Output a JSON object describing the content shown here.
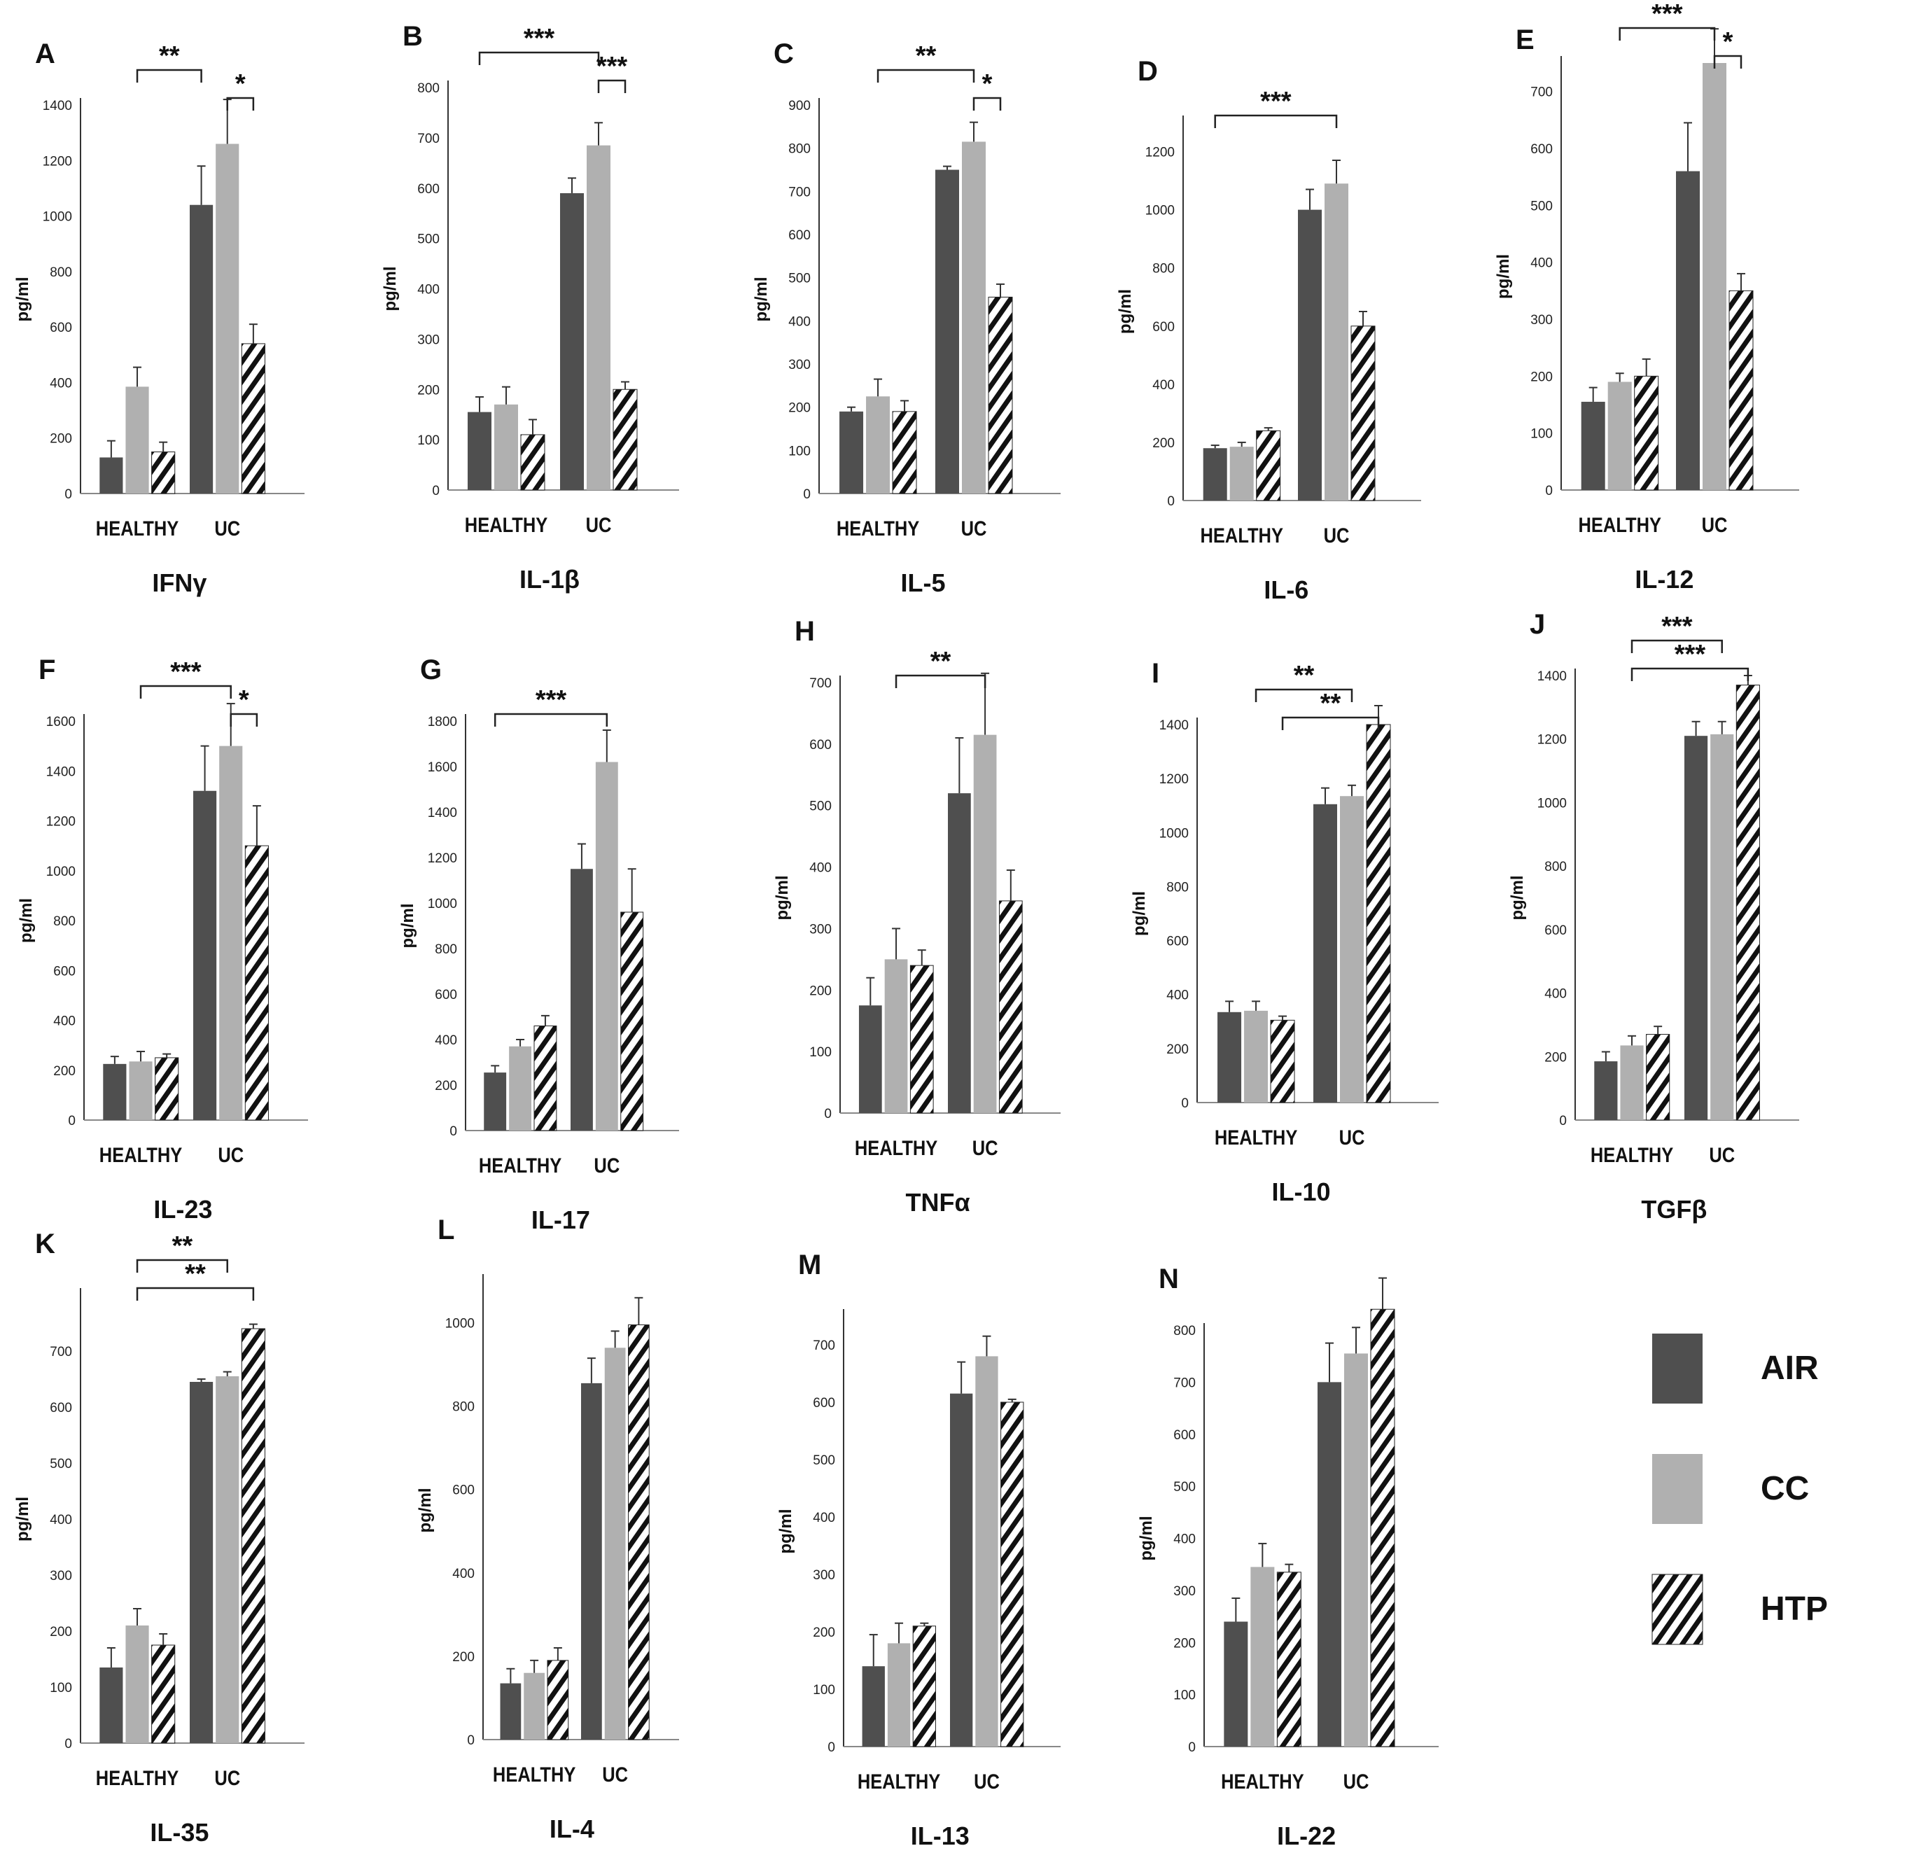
{
  "figure": {
    "ylabel": "pg/ml",
    "legend": [
      {
        "series": "AIR",
        "label": "AIR",
        "fill": "#4f4f4f"
      },
      {
        "series": "CC",
        "label": "CC",
        "fill": "#b0b0b0"
      },
      {
        "series": "HTP",
        "label": "HTP",
        "fill": "hatch"
      }
    ],
    "colors": {
      "air": "#4f4f4f",
      "cc": "#b0b0b0",
      "hatch": "#111111",
      "axis": "#333333"
    }
  },
  "chart_data": [
    {
      "panel": "A",
      "type": "bar",
      "title": "IFNγ",
      "ylabel": "pg/ml",
      "categories": [
        "HEALTHY",
        "UC"
      ],
      "ylim": [
        0,
        1400
      ],
      "yticks": [
        0,
        200,
        400,
        600,
        800,
        1000,
        1200,
        1400
      ],
      "series": [
        {
          "name": "AIR",
          "values": [
            130,
            1040
          ],
          "errors": [
            60,
            140
          ]
        },
        {
          "name": "CC",
          "values": [
            385,
            1260
          ],
          "errors": [
            70,
            160
          ]
        },
        {
          "name": "HTP",
          "values": [
            150,
            540
          ],
          "errors": [
            35,
            70
          ]
        }
      ],
      "annotations": [
        {
          "from": [
            0,
            1
          ],
          "to": [
            1,
            0
          ],
          "label": "**"
        },
        {
          "from": [
            1,
            1
          ],
          "to": [
            1,
            2
          ],
          "label": "*"
        }
      ]
    },
    {
      "panel": "B",
      "type": "bar",
      "title": "IL-1β",
      "ylabel": "pg/ml",
      "categories": [
        "HEALTHY",
        "UC"
      ],
      "ylim": [
        0,
        800
      ],
      "yticks": [
        0,
        100,
        200,
        300,
        400,
        500,
        600,
        700,
        800
      ],
      "series": [
        {
          "name": "AIR",
          "values": [
            155,
            590
          ],
          "errors": [
            30,
            30
          ]
        },
        {
          "name": "CC",
          "values": [
            170,
            685
          ],
          "errors": [
            35,
            45
          ]
        },
        {
          "name": "HTP",
          "values": [
            110,
            200
          ],
          "errors": [
            30,
            15
          ]
        }
      ],
      "annotations": [
        {
          "from": [
            0,
            0
          ],
          "to": [
            1,
            1
          ],
          "label": "***"
        },
        {
          "from": [
            1,
            1
          ],
          "to": [
            1,
            2
          ],
          "label": "***"
        }
      ]
    },
    {
      "panel": "C",
      "type": "bar",
      "title": "IL-5",
      "ylabel": "pg/ml",
      "categories": [
        "HEALTHY",
        "UC"
      ],
      "ylim": [
        0,
        900
      ],
      "yticks": [
        0,
        100,
        200,
        300,
        400,
        500,
        600,
        700,
        800,
        900
      ],
      "series": [
        {
          "name": "AIR",
          "values": [
            190,
            750
          ],
          "errors": [
            10,
            8
          ]
        },
        {
          "name": "CC",
          "values": [
            225,
            815
          ],
          "errors": [
            40,
            45
          ]
        },
        {
          "name": "HTP",
          "values": [
            190,
            455
          ],
          "errors": [
            25,
            30
          ]
        }
      ],
      "annotations": [
        {
          "from": [
            0,
            1
          ],
          "to": [
            1,
            1
          ],
          "label": "**"
        },
        {
          "from": [
            1,
            1
          ],
          "to": [
            1,
            2
          ],
          "label": "*"
        }
      ]
    },
    {
      "panel": "D",
      "type": "bar",
      "title": "IL-6",
      "ylabel": "pg/ml",
      "categories": [
        "HEALTHY",
        "UC"
      ],
      "ylim": [
        0,
        1300
      ],
      "yticks": [
        0,
        200,
        400,
        600,
        800,
        1000,
        1200
      ],
      "series": [
        {
          "name": "AIR",
          "values": [
            180,
            1000
          ],
          "errors": [
            10,
            70
          ]
        },
        {
          "name": "CC",
          "values": [
            185,
            1090
          ],
          "errors": [
            15,
            80
          ]
        },
        {
          "name": "HTP",
          "values": [
            240,
            600
          ],
          "errors": [
            10,
            50
          ]
        }
      ],
      "annotations": [
        {
          "from": [
            0,
            0
          ],
          "to": [
            1,
            1
          ],
          "label": "***"
        }
      ]
    },
    {
      "panel": "E",
      "type": "bar",
      "title": "IL-12",
      "ylabel": "pg/ml",
      "categories": [
        "HEALTHY",
        "UC"
      ],
      "ylim": [
        0,
        750
      ],
      "yticks": [
        0,
        100,
        200,
        300,
        400,
        500,
        600,
        700
      ],
      "series": [
        {
          "name": "AIR",
          "values": [
            155,
            560
          ],
          "errors": [
            25,
            85
          ]
        },
        {
          "name": "CC",
          "values": [
            190,
            750
          ],
          "errors": [
            15,
            60
          ]
        },
        {
          "name": "HTP",
          "values": [
            200,
            350
          ],
          "errors": [
            30,
            30
          ]
        }
      ],
      "annotations": [
        {
          "from": [
            0,
            1
          ],
          "to": [
            1,
            1
          ],
          "label": "***"
        },
        {
          "from": [
            1,
            1
          ],
          "to": [
            1,
            2
          ],
          "label": "*"
        }
      ]
    },
    {
      "panel": "F",
      "type": "bar",
      "title": "IL-23",
      "ylabel": "pg/ml",
      "categories": [
        "HEALTHY",
        "UC"
      ],
      "ylim": [
        0,
        1600
      ],
      "yticks": [
        0,
        200,
        400,
        600,
        800,
        1000,
        1200,
        1400,
        1600
      ],
      "series": [
        {
          "name": "AIR",
          "values": [
            225,
            1320
          ],
          "errors": [
            30,
            180
          ]
        },
        {
          "name": "CC",
          "values": [
            235,
            1500
          ],
          "errors": [
            40,
            170
          ]
        },
        {
          "name": "HTP",
          "values": [
            250,
            1100
          ],
          "errors": [
            15,
            160
          ]
        }
      ],
      "annotations": [
        {
          "from": [
            0,
            1
          ],
          "to": [
            1,
            1
          ],
          "label": "***"
        },
        {
          "from": [
            1,
            1
          ],
          "to": [
            1,
            2
          ],
          "label": "*"
        }
      ]
    },
    {
      "panel": "G",
      "type": "bar",
      "title": "IL-17",
      "ylabel": "pg/ml",
      "categories": [
        "HEALTHY",
        "UC"
      ],
      "ylim": [
        0,
        1800
      ],
      "yticks": [
        0,
        200,
        400,
        600,
        800,
        1000,
        1200,
        1400,
        1600,
        1800
      ],
      "series": [
        {
          "name": "AIR",
          "values": [
            255,
            1150
          ],
          "errors": [
            30,
            110
          ]
        },
        {
          "name": "CC",
          "values": [
            370,
            1620
          ],
          "errors": [
            30,
            140
          ]
        },
        {
          "name": "HTP",
          "values": [
            460,
            960
          ],
          "errors": [
            45,
            190
          ]
        }
      ],
      "annotations": [
        {
          "from": [
            0,
            0
          ],
          "to": [
            1,
            1
          ],
          "label": "***"
        }
      ]
    },
    {
      "panel": "H",
      "type": "bar",
      "title": "TNFα",
      "ylabel": "pg/ml",
      "categories": [
        "HEALTHY",
        "UC"
      ],
      "ylim": [
        0,
        700
      ],
      "yticks": [
        0,
        100,
        200,
        300,
        400,
        500,
        600,
        700
      ],
      "series": [
        {
          "name": "AIR",
          "values": [
            175,
            520
          ],
          "errors": [
            45,
            90
          ]
        },
        {
          "name": "CC",
          "values": [
            250,
            615
          ],
          "errors": [
            50,
            100
          ]
        },
        {
          "name": "HTP",
          "values": [
            240,
            345
          ],
          "errors": [
            25,
            50
          ]
        }
      ],
      "annotations": [
        {
          "from": [
            0,
            1
          ],
          "to": [
            1,
            1
          ],
          "label": "**"
        }
      ]
    },
    {
      "panel": "I",
      "type": "bar",
      "title": "IL-10",
      "ylabel": "pg/ml",
      "categories": [
        "HEALTHY",
        "UC"
      ],
      "ylim": [
        0,
        1400
      ],
      "yticks": [
        0,
        200,
        400,
        600,
        800,
        1000,
        1200,
        1400
      ],
      "series": [
        {
          "name": "AIR",
          "values": [
            335,
            1105
          ],
          "errors": [
            40,
            60
          ]
        },
        {
          "name": "CC",
          "values": [
            340,
            1135
          ],
          "errors": [
            35,
            40
          ]
        },
        {
          "name": "HTP",
          "values": [
            305,
            1400
          ],
          "errors": [
            15,
            70
          ]
        }
      ],
      "annotations": [
        {
          "from": [
            0,
            1
          ],
          "to": [
            1,
            1
          ],
          "label": "**"
        },
        {
          "from": [
            0,
            2
          ],
          "to": [
            1,
            2
          ],
          "label": "**"
        }
      ]
    },
    {
      "panel": "J",
      "type": "bar",
      "title": "TGFβ",
      "ylabel": "pg/ml",
      "categories": [
        "HEALTHY",
        "UC"
      ],
      "ylim": [
        0,
        1400
      ],
      "yticks": [
        0,
        200,
        400,
        600,
        800,
        1000,
        1200,
        1400
      ],
      "series": [
        {
          "name": "AIR",
          "values": [
            185,
            1210
          ],
          "errors": [
            30,
            45
          ]
        },
        {
          "name": "CC",
          "values": [
            235,
            1215
          ],
          "errors": [
            30,
            40
          ]
        },
        {
          "name": "HTP",
          "values": [
            270,
            1370
          ],
          "errors": [
            25,
            30
          ]
        }
      ],
      "annotations": [
        {
          "from": [
            0,
            1
          ],
          "to": [
            1,
            1
          ],
          "label": "***"
        },
        {
          "from": [
            0,
            1
          ],
          "to": [
            1,
            2
          ],
          "label": "***"
        }
      ]
    },
    {
      "panel": "K",
      "type": "bar",
      "title": "IL-35",
      "ylabel": "pg/ml",
      "categories": [
        "HEALTHY",
        "UC"
      ],
      "ylim": [
        0,
        800
      ],
      "yticks": [
        0,
        100,
        200,
        300,
        400,
        500,
        600,
        700
      ],
      "series": [
        {
          "name": "AIR",
          "values": [
            135,
            645
          ],
          "errors": [
            35,
            5
          ]
        },
        {
          "name": "CC",
          "values": [
            210,
            655
          ],
          "errors": [
            30,
            8
          ]
        },
        {
          "name": "HTP",
          "values": [
            175,
            740
          ],
          "errors": [
            20,
            8
          ]
        }
      ],
      "annotations": [
        {
          "from": [
            0,
            1
          ],
          "to": [
            1,
            1
          ],
          "label": "**"
        },
        {
          "from": [
            0,
            1
          ],
          "to": [
            1,
            2
          ],
          "label": "**"
        }
      ]
    },
    {
      "panel": "L",
      "type": "bar",
      "title": "IL-4",
      "ylabel": "pg/ml",
      "categories": [
        "HEALTHY",
        "UC"
      ],
      "ylim": [
        0,
        1100
      ],
      "yticks": [
        0,
        200,
        400,
        600,
        800,
        1000
      ],
      "series": [
        {
          "name": "AIR",
          "values": [
            135,
            855
          ],
          "errors": [
            35,
            60
          ]
        },
        {
          "name": "CC",
          "values": [
            160,
            940
          ],
          "errors": [
            30,
            40
          ]
        },
        {
          "name": "HTP",
          "values": [
            190,
            995
          ],
          "errors": [
            30,
            65
          ]
        }
      ],
      "annotations": []
    },
    {
      "panel": "M",
      "type": "bar",
      "title": "IL-13",
      "ylabel": "pg/ml",
      "categories": [
        "HEALTHY",
        "UC"
      ],
      "ylim": [
        0,
        750
      ],
      "yticks": [
        0,
        100,
        200,
        300,
        400,
        500,
        600,
        700
      ],
      "series": [
        {
          "name": "AIR",
          "values": [
            140,
            615
          ],
          "errors": [
            55,
            55
          ]
        },
        {
          "name": "CC",
          "values": [
            180,
            680
          ],
          "errors": [
            35,
            35
          ]
        },
        {
          "name": "HTP",
          "values": [
            210,
            600
          ],
          "errors": [
            5,
            5
          ]
        }
      ],
      "annotations": []
    },
    {
      "panel": "N",
      "type": "bar",
      "title": "IL-22",
      "ylabel": "pg/ml",
      "categories": [
        "HEALTHY",
        "UC"
      ],
      "ylim": [
        0,
        800
      ],
      "yticks": [
        0,
        100,
        200,
        300,
        400,
        500,
        600,
        700,
        800
      ],
      "series": [
        {
          "name": "AIR",
          "values": [
            240,
            700
          ],
          "errors": [
            45,
            75
          ]
        },
        {
          "name": "CC",
          "values": [
            345,
            755
          ],
          "errors": [
            45,
            50
          ]
        },
        {
          "name": "HTP",
          "values": [
            335,
            840
          ],
          "errors": [
            15,
            60
          ]
        }
      ],
      "annotations": []
    }
  ]
}
